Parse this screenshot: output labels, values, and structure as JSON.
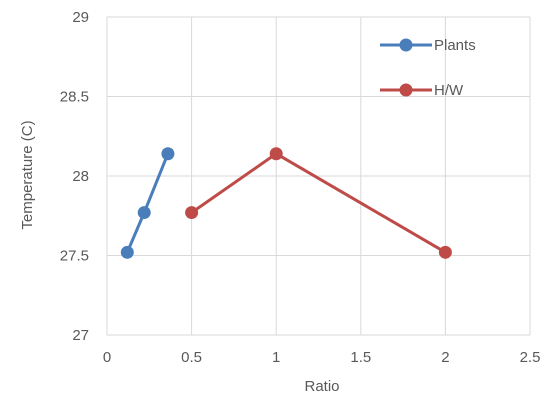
{
  "chart_data": {
    "type": "line",
    "xlabel": "Ratio",
    "ylabel": "Temperature (C)",
    "xlim": [
      0,
      2.5
    ],
    "ylim": [
      27,
      29
    ],
    "x_ticks": [
      "0",
      "0.5",
      "1",
      "1.5",
      "2",
      "2.5"
    ],
    "y_ticks": [
      "27",
      "27.5",
      "28",
      "28.5",
      "29"
    ],
    "grid": "vertical and horizontal",
    "legend_position": "top-right inside",
    "series": [
      {
        "name": "Plants",
        "color": "#4A7EBB",
        "x": [
          0.12,
          0.22,
          0.36
        ],
        "y": [
          27.52,
          27.77,
          28.14
        ]
      },
      {
        "name": "H/W",
        "color": "#BE4B48",
        "x": [
          0.5,
          1,
          2
        ],
        "y": [
          27.77,
          28.14,
          27.52
        ]
      }
    ]
  }
}
